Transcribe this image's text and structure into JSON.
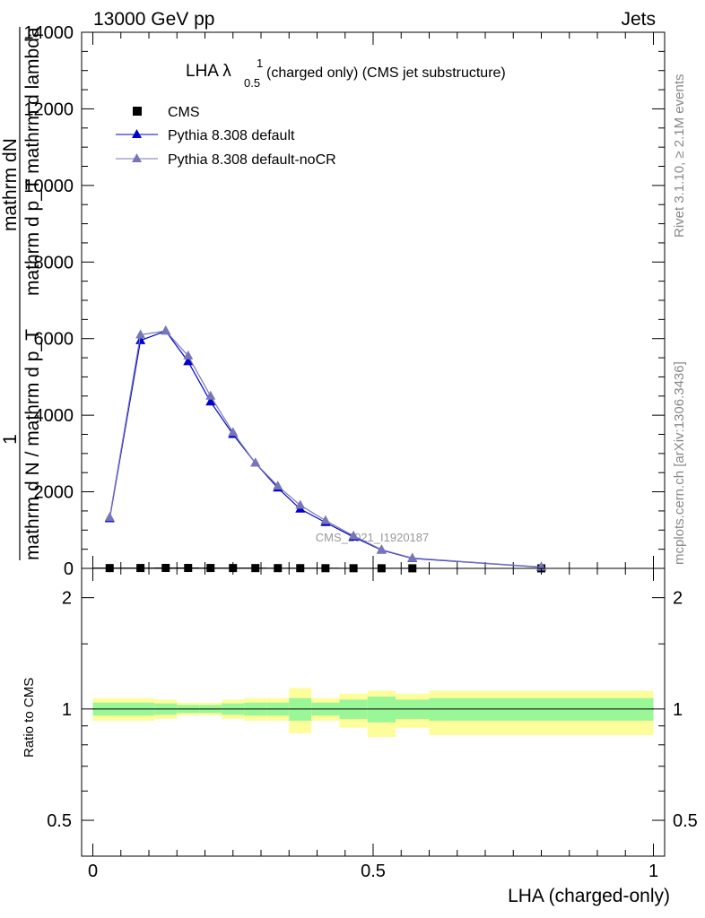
{
  "header": {
    "energy": "13000 GeV pp",
    "category": "Jets"
  },
  "side": {
    "rivet": "Rivet 3.1.10, ≥ 2.1M events",
    "mcplots": "mcplots.cern.ch [arXiv:1306.3436]"
  },
  "top_panel": {
    "title_main": "LHA λ",
    "title_sup": "1",
    "title_sub": "0.5",
    "title_rest": " (charged only) (CMS jet substructure)",
    "ylabel_num": "mathrm dN",
    "ylabel_mid": "mathrm d p_T mathrm d lambda",
    "ylabel_den": "mathrm d N / mathrm d p_T",
    "ylabel_one": "1",
    "yticks": [
      "0",
      "2000",
      "4000",
      "6000",
      "8000",
      "10000",
      "12000",
      "14000"
    ],
    "watermark": "CMS_2021_I1920187",
    "legend": [
      {
        "label": "CMS",
        "marker": "square",
        "color": "#000000"
      },
      {
        "label": "Pythia 8.308 default",
        "marker": "triangle",
        "color": "#0000cc"
      },
      {
        "label": "Pythia 8.308 default-noCR",
        "marker": "triangle",
        "color": "#7777b8"
      }
    ]
  },
  "bottom_panel": {
    "ylabel": "Ratio to CMS",
    "yticks": [
      "0.5",
      "1",
      "2"
    ],
    "xticks": [
      "0",
      "0.5",
      "1"
    ],
    "xlabel": "LHA (charged-only)"
  },
  "chart_data": {
    "type": "line",
    "top": {
      "xlim": [
        -0.02,
        1.02
      ],
      "ylim": [
        0,
        14000
      ],
      "bin_edges": [
        0,
        0.06,
        0.11,
        0.15,
        0.19,
        0.23,
        0.27,
        0.31,
        0.35,
        0.39,
        0.44,
        0.49,
        0.54,
        0.6,
        1.0
      ],
      "series": [
        {
          "name": "CMS",
          "x": [
            0.03,
            0.085,
            0.13,
            0.17,
            0.21,
            0.25,
            0.29,
            0.33,
            0.37,
            0.415,
            0.465,
            0.515,
            0.57,
            0.8
          ],
          "values": [
            8,
            10,
            12,
            11,
            10,
            9,
            8,
            7,
            6,
            5,
            4,
            3,
            2,
            0.5
          ]
        },
        {
          "name": "Pythia 8.308 default",
          "x": [
            0.03,
            0.085,
            0.13,
            0.17,
            0.21,
            0.25,
            0.29,
            0.33,
            0.37,
            0.415,
            0.465,
            0.515,
            0.57,
            0.8
          ],
          "values": [
            1300,
            5950,
            6200,
            5400,
            4350,
            3500,
            2750,
            2100,
            1550,
            1200,
            820,
            480,
            260,
            30
          ]
        },
        {
          "name": "Pythia 8.308 default-noCR",
          "x": [
            0.03,
            0.085,
            0.13,
            0.17,
            0.21,
            0.25,
            0.29,
            0.33,
            0.37,
            0.415,
            0.465,
            0.515,
            0.57,
            0.8
          ],
          "values": [
            1330,
            6100,
            6200,
            5550,
            4500,
            3550,
            2750,
            2150,
            1650,
            1250,
            850,
            490,
            270,
            35
          ]
        }
      ]
    },
    "ratio": {
      "ylim": [
        0.4,
        2.4
      ],
      "log_y": true,
      "bands": {
        "bin_edges": [
          0,
          0.06,
          0.11,
          0.15,
          0.19,
          0.23,
          0.27,
          0.31,
          0.35,
          0.39,
          0.44,
          0.49,
          0.54,
          0.6,
          1.0
        ],
        "inner": [
          [
            0.96,
            1.04
          ],
          [
            0.96,
            1.04
          ],
          [
            0.965,
            1.035
          ],
          [
            0.975,
            1.025
          ],
          [
            0.975,
            1.025
          ],
          [
            0.965,
            1.035
          ],
          [
            0.96,
            1.04
          ],
          [
            0.96,
            1.04
          ],
          [
            0.93,
            1.07
          ],
          [
            0.96,
            1.04
          ],
          [
            0.94,
            1.06
          ],
          [
            0.92,
            1.08
          ],
          [
            0.94,
            1.06
          ],
          [
            0.93,
            1.07
          ]
        ],
        "outer": [
          [
            0.93,
            1.07
          ],
          [
            0.93,
            1.07
          ],
          [
            0.94,
            1.06
          ],
          [
            0.96,
            1.04
          ],
          [
            0.96,
            1.04
          ],
          [
            0.94,
            1.06
          ],
          [
            0.93,
            1.07
          ],
          [
            0.93,
            1.07
          ],
          [
            0.86,
            1.14
          ],
          [
            0.93,
            1.07
          ],
          [
            0.89,
            1.1
          ],
          [
            0.84,
            1.12
          ],
          [
            0.89,
            1.1
          ],
          [
            0.85,
            1.12
          ]
        ]
      },
      "reference": 1
    }
  },
  "colors": {
    "inner_band": "#99f797",
    "outer_band": "#fdfd9b",
    "axis": "#000000"
  }
}
